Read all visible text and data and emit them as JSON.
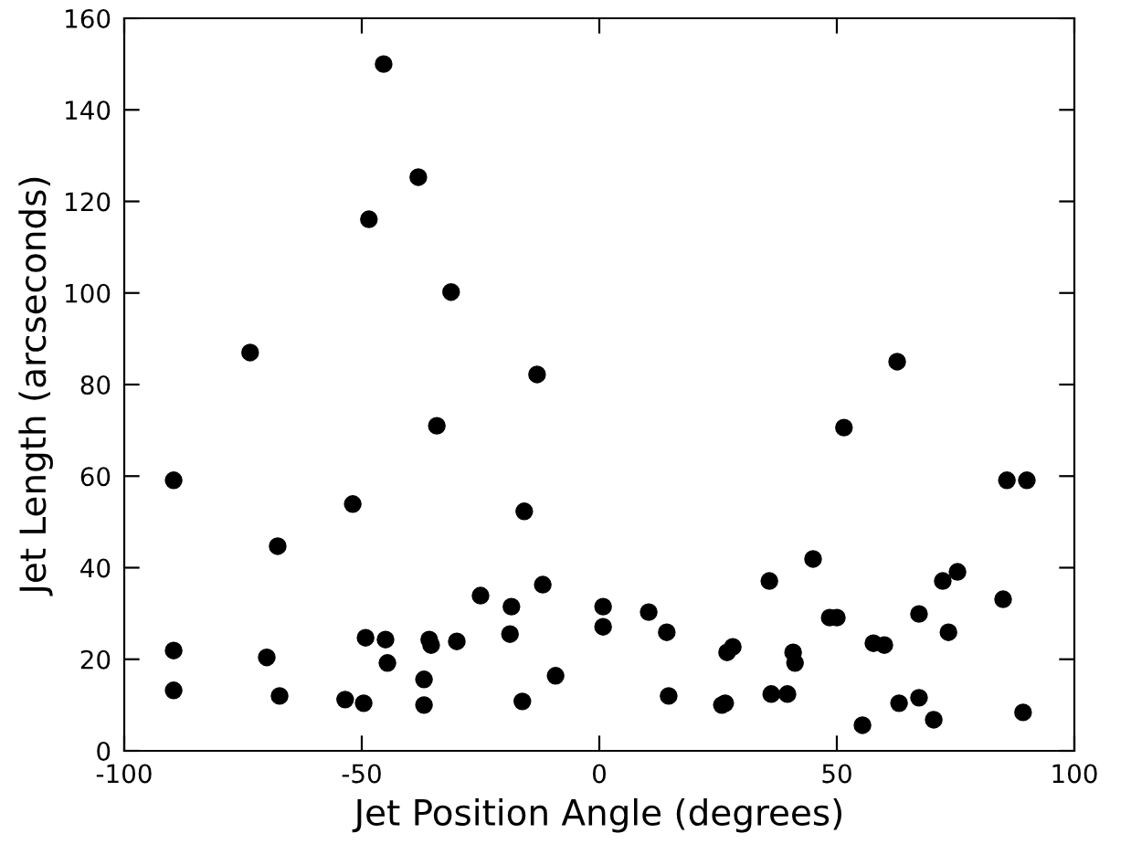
{
  "chart_data": {
    "type": "scatter",
    "xlabel": "Jet Position Angle (degrees)",
    "ylabel": "Jet Length (arcseconds)",
    "xlim": [
      -100,
      100
    ],
    "ylim": [
      0,
      160
    ],
    "xticks": [
      -100,
      -50,
      0,
      50,
      100
    ],
    "yticks": [
      0,
      20,
      40,
      60,
      80,
      100,
      120,
      140,
      160
    ],
    "grid": false,
    "marker": "circle",
    "series": [
      {
        "color": "#000000",
        "x": [
          -89.6,
          -89.6,
          -89.6,
          -73.5,
          -70.0,
          -67.7,
          -67.3,
          -53.5,
          -51.9,
          -49.6,
          -49.2,
          -48.5,
          -45.4,
          -45.0,
          -44.6,
          -38.1,
          -36.9,
          -36.9,
          -35.8,
          -35.4,
          -34.2,
          -31.2,
          -30.0,
          -25.0,
          -18.8,
          -18.5,
          -16.2,
          -15.8,
          -13.1,
          -11.9,
          -9.2,
          0.8,
          0.8,
          10.4,
          14.2,
          14.6,
          25.8,
          26.5,
          26.9,
          28.1,
          35.8,
          36.2,
          39.6,
          40.8,
          41.2,
          45.0,
          48.5,
          50.0,
          51.5,
          55.4,
          57.7,
          60.0,
          62.7,
          63.1,
          67.3,
          67.3,
          70.4,
          72.3,
          73.5,
          75.4,
          85.0,
          85.8,
          89.2,
          90.0
        ],
        "values": [
          59.1,
          21.9,
          13.2,
          87.0,
          20.4,
          44.7,
          12.0,
          11.2,
          53.9,
          10.4,
          24.7,
          116.1,
          150.0,
          24.3,
          19.2,
          125.3,
          15.6,
          10.0,
          24.3,
          23.1,
          71.0,
          100.2,
          23.9,
          33.9,
          25.5,
          31.5,
          10.8,
          52.3,
          82.2,
          36.3,
          16.4,
          31.5,
          27.1,
          30.3,
          25.9,
          12.0,
          10.0,
          10.4,
          21.5,
          22.7,
          37.1,
          12.4,
          12.4,
          21.5,
          19.2,
          41.9,
          29.1,
          29.1,
          70.6,
          5.6,
          23.5,
          23.1,
          85.0,
          10.4,
          29.9,
          11.6,
          6.8,
          37.1,
          25.9,
          39.1,
          33.1,
          59.1,
          8.4,
          59.1
        ]
      }
    ]
  }
}
